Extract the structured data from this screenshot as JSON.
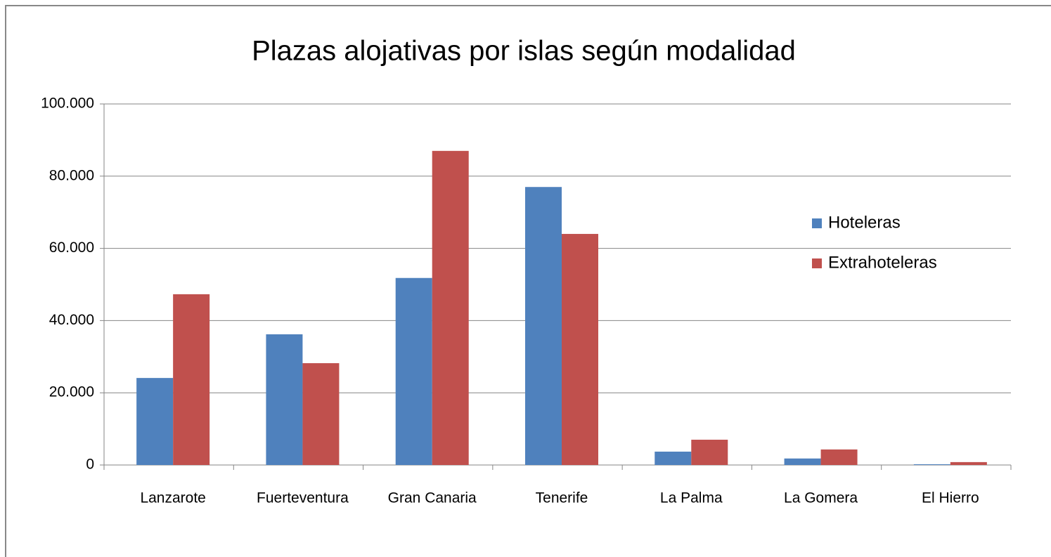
{
  "chart_data": {
    "type": "bar",
    "title": "Plazas alojativas por islas según modalidad",
    "categories": [
      "Lanzarote",
      "Fuerteventura",
      "Gran Canaria",
      "Tenerife",
      "La Palma",
      "La Gomera",
      "El Hierro"
    ],
    "series": [
      {
        "name": "Hoteleras",
        "color": "#4f81bd",
        "values": [
          24100,
          36200,
          51800,
          77000,
          3700,
          1800,
          200
        ]
      },
      {
        "name": "Extrahoteleras",
        "color": "#c0504d",
        "values": [
          47300,
          28200,
          87000,
          64000,
          7000,
          4300,
          800
        ]
      }
    ],
    "ylim": [
      0,
      100000
    ],
    "yticks": [
      0,
      {
        "value": 20000,
        "label": "20.000"
      },
      {
        "value": 40000,
        "label": "40.000"
      },
      {
        "value": 60000,
        "label": "60.000"
      },
      {
        "value": 80000,
        "label": "80.000"
      },
      {
        "value": 100000,
        "label": "100.000"
      }
    ],
    "grid": true,
    "legend": "right"
  }
}
